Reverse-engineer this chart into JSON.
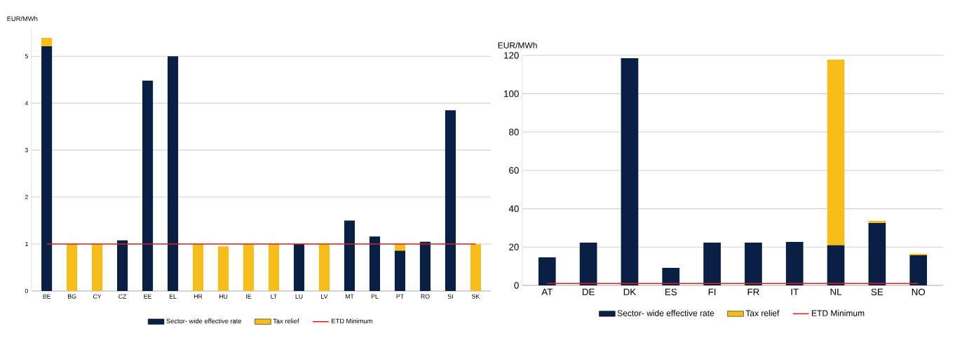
{
  "chart_data": [
    {
      "type": "bar",
      "stacked": true,
      "ylabel": "EUR/MWh",
      "categories": [
        "BE",
        "BG",
        "CY",
        "CZ",
        "EE",
        "EL",
        "HR",
        "HU",
        "IE",
        "LT",
        "LU",
        "LV",
        "MT",
        "PL",
        "PT",
        "RO",
        "SI",
        "SK"
      ],
      "series": [
        {
          "name": "Sector- wide effective rate",
          "color": "#0a1f44",
          "values": [
            5.21,
            0,
            0,
            1.08,
            4.48,
            5.0,
            0,
            0,
            0,
            0,
            1.0,
            0,
            1.5,
            1.16,
            0.86,
            1.05,
            3.85,
            0
          ]
        },
        {
          "name": "Tax relief",
          "color": "#f7bd1a",
          "values": [
            0.18,
            1.0,
            1.0,
            0,
            0,
            0,
            1.0,
            0.95,
            1.0,
            1.0,
            0,
            1.0,
            0,
            0,
            0.14,
            0,
            0,
            1.0
          ]
        },
        {
          "name": "ETD Minimum",
          "type": "line",
          "color": "#e02020",
          "values": [
            1,
            1,
            1,
            1,
            1,
            1,
            1,
            1,
            1,
            1,
            1,
            1,
            1,
            1,
            1,
            1,
            1,
            1
          ]
        }
      ],
      "ylim": [
        0,
        5.6
      ],
      "yticks": [
        0,
        1,
        2,
        3,
        4,
        5
      ],
      "grid": "y",
      "legend": "bottom"
    },
    {
      "type": "bar",
      "stacked": true,
      "ylabel": "EUR/MWh",
      "categories": [
        "AT",
        "DE",
        "DK",
        "ES",
        "FI",
        "FR",
        "IT",
        "NL",
        "SE",
        "NO"
      ],
      "series": [
        {
          "name": "Sector- wide effective rate",
          "color": "#0a1f44",
          "values": [
            14.6,
            22.3,
            118.5,
            9.1,
            22.3,
            22.3,
            22.7,
            20.9,
            32.6,
            15.7
          ]
        },
        {
          "name": "Tax relief",
          "color": "#f7bd1a",
          "values": [
            0,
            0,
            0,
            0,
            0,
            0,
            0,
            96.9,
            1.1,
            0.8
          ]
        },
        {
          "name": "ETD Minimum",
          "type": "line",
          "color": "#e02020",
          "values": [
            1,
            1,
            1,
            1,
            1,
            1,
            1,
            1,
            1,
            1
          ]
        }
      ],
      "ylim": [
        0,
        120
      ],
      "yticks": [
        0,
        20,
        40,
        60,
        80,
        100,
        120
      ],
      "grid": "y",
      "legend": "bottom"
    }
  ]
}
